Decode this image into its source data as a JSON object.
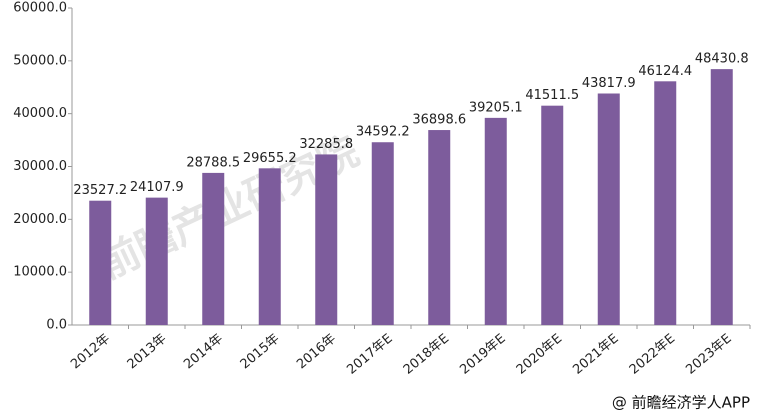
{
  "chart_data": {
    "type": "bar",
    "categories": [
      "2012年",
      "2013年",
      "2014年",
      "2015年",
      "2016年",
      "2017年E",
      "2018年E",
      "2019年E",
      "2020年E",
      "2021年E",
      "2022年E",
      "2023年E"
    ],
    "values": [
      23527.2,
      24107.9,
      28788.5,
      29655.2,
      32285.8,
      34592.2,
      36898.6,
      39205.1,
      41511.5,
      43817.9,
      46124.4,
      48430.8
    ],
    "color": "#7d5c9c",
    "ylim": [
      0,
      60000
    ],
    "yticks": [
      {
        "value": 0,
        "label": "0.0"
      },
      {
        "value": 10000,
        "label": "10000.0"
      },
      {
        "value": 20000,
        "label": "20000.0"
      },
      {
        "value": 30000,
        "label": "30000.0"
      },
      {
        "value": 40000,
        "label": "40000.0"
      },
      {
        "value": 50000,
        "label": "50000.0"
      },
      {
        "value": 60000,
        "label": "60000.0"
      }
    ],
    "watermark": "前瞻产业研究院",
    "source": "@ 前瞻经济学人APP"
  }
}
